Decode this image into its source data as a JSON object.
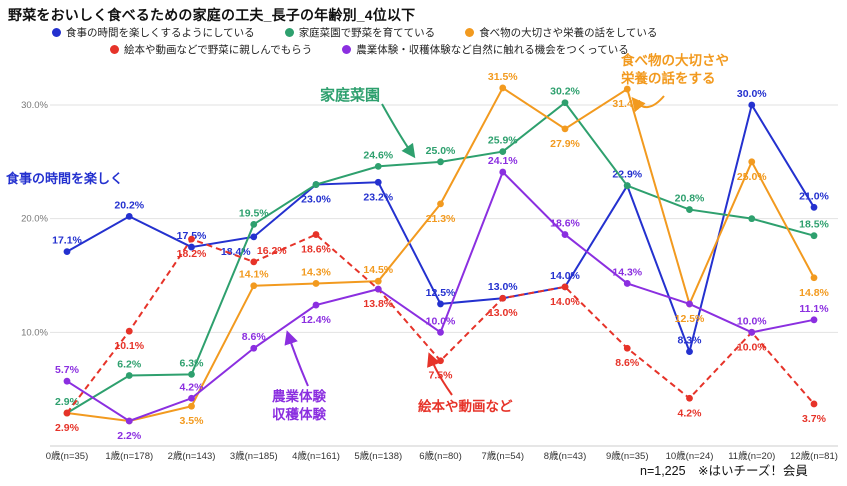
{
  "title": "野菜をおいしく食べるための家庭の工夫_長子の年齢別_4位以下",
  "legend": [
    {
      "label": "食事の時間を楽しくするようにしている",
      "color": "#2431cf"
    },
    {
      "label": "家庭菜園で野菜を育てている",
      "color": "#2ea06e"
    },
    {
      "label": "食べ物の大切さや栄養の話をしている",
      "color": "#f29a1f"
    },
    {
      "label": "絵本や動画などで野菜に親しんでもらう",
      "color": "#e63329"
    },
    {
      "label": "農業体験・収穫体験など自然に触れる機会をつくっている",
      "color": "#8b2fe0"
    }
  ],
  "chart_data": {
    "type": "line",
    "title": "野菜をおいしく食べるための家庭の工夫_長子の年齢別_4位以下",
    "categories": [
      "0歳(n=35)",
      "1歳(n=178)",
      "2歳(n=143)",
      "3歳(n=185)",
      "4歳(n=161)",
      "5歳(n=138)",
      "6歳(n=80)",
      "7歳(n=54)",
      "8歳(n=43)",
      "9歳(n=35)",
      "10歳(n=24)",
      "11歳(n=20)",
      "12歳(n=81)"
    ],
    "ylabel": "",
    "xlabel": "",
    "ylim": [
      0,
      33
    ],
    "grid": true,
    "legend_position": "top",
    "y_ticks": [
      {
        "value": 30,
        "label": "30.0%"
      },
      {
        "value": 20,
        "label": "20.0%"
      },
      {
        "value": 10,
        "label": "10.0%"
      }
    ],
    "series": [
      {
        "name": "食事の時間を楽しくするようにしている",
        "color": "#2431cf",
        "dash": false,
        "values": [
          17.1,
          20.2,
          17.5,
          18.4,
          23.0,
          23.2,
          12.5,
          13.0,
          14.0,
          22.9,
          8.3,
          30.0,
          21.0
        ],
        "labels": [
          "17.1%",
          "20.2%",
          "17.5%",
          "18.4%",
          "23.0%",
          "23.2%",
          "12.5%",
          "13.0%",
          "14.0%",
          "22.9%",
          "8.3%",
          "30.0%",
          "21.0%"
        ]
      },
      {
        "name": "家庭菜園で野菜を育てている",
        "color": "#2ea06e",
        "dash": false,
        "values": [
          2.9,
          6.2,
          6.3,
          19.5,
          23.0,
          24.6,
          25.0,
          25.9,
          30.2,
          22.9,
          20.8,
          20.0,
          18.5
        ],
        "labels": [
          "2.9%",
          "6.2%",
          "6.3%",
          "19.5%",
          null,
          "24.6%",
          "25.0%",
          "25.9%",
          "30.2%",
          null,
          "20.8%",
          null,
          "18.5%"
        ]
      },
      {
        "name": "食べ物の大切さや栄養の話をしている",
        "color": "#f29a1f",
        "dash": false,
        "values": [
          2.9,
          2.2,
          3.5,
          14.1,
          14.3,
          14.5,
          21.3,
          31.5,
          27.9,
          31.4,
          12.5,
          25.0,
          14.8
        ],
        "labels": [
          null,
          null,
          "3.5%",
          "14.1%",
          "14.3%",
          "14.5%",
          "21.3%",
          "31.5%",
          "27.9%",
          "31.4%",
          "12.5%",
          "25.0%",
          "14.8%"
        ]
      },
      {
        "name": "絵本や動画などで野菜に親しんでもらう",
        "color": "#e63329",
        "dash": true,
        "values": [
          2.9,
          10.1,
          18.2,
          16.2,
          18.6,
          13.8,
          7.5,
          13.0,
          14.0,
          8.6,
          4.2,
          10.0,
          3.7
        ],
        "labels": [
          "2.9%",
          "10.1%",
          "18.2%",
          "16.2%",
          "18.6%",
          "13.8%",
          "7.5%",
          "13.0%",
          "14.0%",
          "8.6%",
          "4.2%",
          "10.0%",
          "3.7%"
        ]
      },
      {
        "name": "農業体験・収穫体験など自然に触れる機会をつくっている",
        "color": "#8b2fe0",
        "dash": false,
        "values": [
          5.7,
          2.2,
          4.2,
          8.6,
          12.4,
          13.8,
          10.0,
          24.1,
          18.6,
          14.3,
          12.5,
          10.0,
          11.1
        ],
        "labels": [
          "5.7%",
          "2.2%",
          "4.2%",
          "8.6%",
          "12.4%",
          null,
          "10.0%",
          "24.1%",
          "18.6%",
          "14.3%",
          null,
          "10.0%",
          "11.1%"
        ]
      }
    ],
    "annotations": [
      {
        "text": "食事の時間を楽しく",
        "color": "#2431cf"
      },
      {
        "text": "家庭菜園",
        "color": "#2ea06e"
      },
      {
        "text": "食べ物の大切さや\n栄養の話をする",
        "color": "#f29a1f"
      },
      {
        "text": "農業体験\n収穫体験",
        "color": "#8b2fe0"
      },
      {
        "text": "絵本や動画など",
        "color": "#e63329"
      }
    ]
  },
  "footnote": "n=1,225　※はいチーズ！会員"
}
